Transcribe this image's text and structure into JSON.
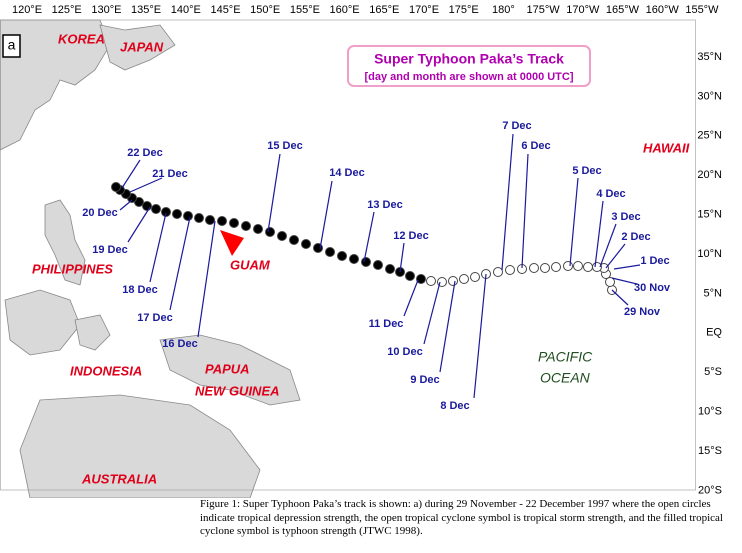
{
  "panel_label": "a",
  "title": "Super Typhoon Paka’s Track",
  "subtitle": "[day and month are shown at 0000 UTC]",
  "longitude_labels": [
    "120°E",
    "125°E",
    "130°E",
    "135°E",
    "140°E",
    "145°E",
    "150°E",
    "155°E",
    "160°E",
    "165°E",
    "170°E",
    "175°E",
    "180°",
    "175°W",
    "170°W",
    "165°W",
    "160°W",
    "155°W"
  ],
  "latitude_labels": [
    "35°N",
    "30°N",
    "25°N",
    "20°N",
    "15°N",
    "10°N",
    "5°N",
    "EQ",
    "5°S",
    "10°S",
    "15°S",
    "20°S"
  ],
  "place_labels": [
    "KOREA",
    "JAPAN",
    "HAWAII",
    "PHILIPPINES",
    "GUAM",
    "INDONESIA",
    "PAPUA",
    "NEW GUINEA",
    "AUSTRALIA"
  ],
  "ocean_labels": [
    "PACIFIC",
    "OCEAN"
  ],
  "date_labels": [
    "22 Dec",
    "21 Dec",
    "20 Dec",
    "19 Dec",
    "18 Dec",
    "17 Dec",
    "16 Dec",
    "15 Dec",
    "14 Dec",
    "13 Dec",
    "12 Dec",
    "11 Dec",
    "10 Dec",
    "9 Dec",
    "8 Dec",
    "7 Dec",
    "6 Dec",
    "5 Dec",
    "4 Dec",
    "3 Dec",
    "2 Dec",
    "1 Dec",
    "30 Nov",
    "29 Nov"
  ],
  "caption": "Figure 1: Super Typhoon Paka’s track is shown: a) during 29 November - 22 December 1997 where the open circles indicate tropical depression strength, the open tropical cyclone symbol is tropical storm strength, and the filled tropical cyclone symbol is typhoon strength (JTWC 1998)."
}
